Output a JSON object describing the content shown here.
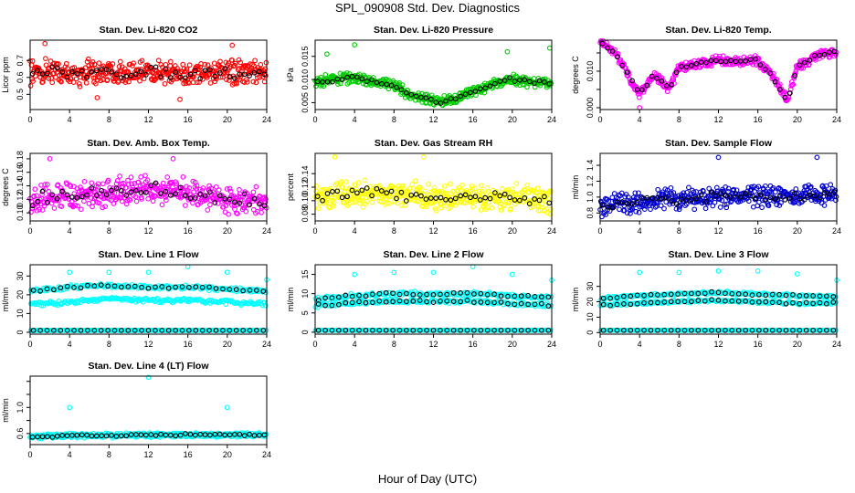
{
  "figure": {
    "title": "SPL_090908  Std. Dev. Diagnostics",
    "xlabel": "Hour of Day (UTC)"
  },
  "colors": {
    "overlay": "#000000",
    "axis": "#000000"
  },
  "chart_data": [
    {
      "type": "scatter",
      "title": "Stan. Dev. Li-820 CO2",
      "ylabel": "Licor ppm",
      "xlim": [
        0,
        24
      ],
      "xticks": [
        0,
        4,
        8,
        12,
        16,
        20,
        24
      ],
      "ylim": [
        0.41,
        0.82
      ],
      "yticks": [
        0.5,
        0.6,
        0.7
      ],
      "ytick_labels": [
        "0.5",
        "0.6",
        "0.7"
      ],
      "color": "#ff0000",
      "overlay_color": "#000000",
      "series": [
        {
          "name": "data",
          "x": [
            0,
            2,
            4,
            6,
            8,
            10,
            12,
            14,
            16,
            18,
            20,
            22,
            24
          ],
          "y": [
            0.63,
            0.64,
            0.62,
            0.63,
            0.63,
            0.62,
            0.63,
            0.63,
            0.62,
            0.63,
            0.63,
            0.62,
            0.63
          ]
        },
        {
          "name": "outliers",
          "x": [
            1.5,
            6.8,
            15.2,
            20.5
          ],
          "y": [
            0.8,
            0.48,
            0.47,
            0.79
          ]
        }
      ]
    },
    {
      "type": "scatter",
      "title": "Stan. Dev. Li-820 Pressure",
      "ylabel": "kPa",
      "xlim": [
        0,
        24
      ],
      "xticks": [
        0,
        4,
        8,
        12,
        16,
        20,
        24
      ],
      "ylim": [
        0.0035,
        0.0185
      ],
      "yticks": [
        0.005,
        0.01,
        0.015
      ],
      "ytick_labels": [
        "0.005",
        "0.010",
        "0.015"
      ],
      "color": "#00cc00",
      "overlay_color": "#000000",
      "series": [
        {
          "name": "data",
          "x": [
            0,
            2,
            4,
            6,
            8,
            10,
            12,
            14,
            16,
            18,
            20,
            22,
            24
          ],
          "y": [
            0.0095,
            0.01,
            0.0105,
            0.0095,
            0.0085,
            0.0065,
            0.0055,
            0.0055,
            0.0075,
            0.009,
            0.01,
            0.0095,
            0.009
          ]
        },
        {
          "name": "outliers",
          "x": [
            4,
            23.8,
            1.2,
            19.5
          ],
          "y": [
            0.0175,
            0.0168,
            0.0155,
            0.016
          ]
        }
      ]
    },
    {
      "type": "scatter",
      "title": "Stan. Dev. Li-820 Temp.",
      "ylabel": "degrees C",
      "xlim": [
        0,
        24
      ],
      "xticks": [
        0,
        4,
        8,
        12,
        16,
        20,
        24
      ],
      "ylim": [
        -0.0005,
        0.0185
      ],
      "yticks": [
        0.0,
        0.005,
        0.01,
        0.015
      ],
      "ytick_labels": [
        "0.000",
        "",
        "0.010",
        ""
      ],
      "color": "#ff00ff",
      "overlay_color": "#000000",
      "series": [
        {
          "name": "data",
          "x": [
            0,
            1.5,
            3,
            4,
            5.5,
            7,
            8,
            10,
            12,
            14,
            16,
            17.5,
            19,
            20,
            22,
            24
          ],
          "y": [
            0.018,
            0.015,
            0.008,
            0.004,
            0.009,
            0.005,
            0.011,
            0.012,
            0.013,
            0.0125,
            0.013,
            0.0085,
            0.002,
            0.011,
            0.0145,
            0.0155
          ]
        },
        {
          "name": "outliers",
          "x": [
            4
          ],
          "y": [
            0.0
          ]
        }
      ]
    },
    {
      "type": "scatter",
      "title": "Stan. Dev. Amb. Box Temp.",
      "ylabel": "degrees C",
      "xlim": [
        0,
        24
      ],
      "xticks": [
        0,
        4,
        8,
        12,
        16,
        20,
        24
      ],
      "ylim": [
        0.088,
        0.188
      ],
      "yticks": [
        0.1,
        0.12,
        0.14,
        0.16,
        0.18
      ],
      "ytick_labels": [
        "0.10",
        "0.12",
        "0.14",
        "0.16",
        "0.18"
      ],
      "color": "#ff00ff",
      "overlay_color": "#000000",
      "series": [
        {
          "name": "data",
          "x": [
            0,
            4,
            8,
            12,
            16,
            20,
            24
          ],
          "y": [
            0.12,
            0.125,
            0.13,
            0.135,
            0.13,
            0.12,
            0.115
          ]
        },
        {
          "name": "outliers",
          "x": [
            2,
            14.5
          ],
          "y": [
            0.18,
            0.18
          ]
        }
      ]
    },
    {
      "type": "scatter",
      "title": "Stan. Dev. Gas Stream RH",
      "ylabel": "percent",
      "xlim": [
        0,
        24
      ],
      "xticks": [
        0,
        4,
        8,
        12,
        16,
        20,
        24
      ],
      "ylim": [
        0.07,
        0.17
      ],
      "yticks": [
        0.08,
        0.1,
        0.12,
        0.14
      ],
      "ytick_labels": [
        "0.08",
        "0.10",
        "0.12",
        "0.14"
      ],
      "color": "#ffff00",
      "overlay_color": "#000000",
      "series": [
        {
          "name": "data",
          "x": [
            0,
            4,
            8,
            12,
            16,
            20,
            24
          ],
          "y": [
            0.105,
            0.11,
            0.11,
            0.105,
            0.105,
            0.105,
            0.1
          ]
        },
        {
          "name": "outliers",
          "x": [
            2,
            11
          ],
          "y": [
            0.165,
            0.165
          ]
        }
      ]
    },
    {
      "type": "scatter",
      "title": "Stan. Dev. Sample Flow",
      "ylabel": "ml/min",
      "xlim": [
        0,
        24
      ],
      "xticks": [
        0,
        4,
        8,
        12,
        16,
        20,
        24
      ],
      "ylim": [
        0.7,
        1.55
      ],
      "yticks": [
        0.8,
        1.0,
        1.2,
        1.4
      ],
      "ytick_labels": [
        "0.8",
        "1.0",
        "1.2",
        "1.4"
      ],
      "color": "#0000cc",
      "overlay_color": "#000000",
      "series": [
        {
          "name": "data",
          "x": [
            0,
            4,
            8,
            12,
            16,
            20,
            24
          ],
          "y": [
            0.9,
            0.95,
            0.98,
            1.0,
            1.0,
            1.02,
            1.05
          ]
        },
        {
          "name": "outliers",
          "x": [
            12,
            22
          ],
          "y": [
            1.5,
            1.5
          ]
        }
      ]
    },
    {
      "type": "scatter",
      "title": "Stan. Dev. Line 1 Flow",
      "ylabel": "ml/min",
      "xlim": [
        0,
        24
      ],
      "xticks": [
        0,
        4,
        8,
        12,
        16,
        20,
        24
      ],
      "ylim": [
        -1,
        36
      ],
      "yticks": [
        0,
        10,
        20,
        30
      ],
      "ytick_labels": [
        "0",
        "10",
        "20",
        "30"
      ],
      "color": "#00ffff",
      "overlay_color": "#000000",
      "series": [
        {
          "name": "band-upper",
          "x": [
            0,
            4,
            8,
            12,
            16,
            20,
            24
          ],
          "y": [
            22,
            24,
            25,
            24,
            24,
            23,
            22
          ]
        },
        {
          "name": "band-lower",
          "x": [
            0,
            4,
            8,
            12,
            16,
            20,
            24
          ],
          "y": [
            15,
            16,
            18,
            17,
            17,
            16,
            15
          ]
        },
        {
          "name": "band-zero",
          "x": [
            0,
            24
          ],
          "y": [
            1,
            1
          ]
        },
        {
          "name": "spikes",
          "x": [
            4,
            8,
            12,
            16,
            20,
            24
          ],
          "y": [
            32,
            32,
            32,
            35,
            32,
            28
          ]
        }
      ]
    },
    {
      "type": "scatter",
      "title": "Stan. Dev. Line 2 Flow",
      "ylabel": "ml/min",
      "xlim": [
        0,
        24
      ],
      "xticks": [
        0,
        4,
        8,
        12,
        16,
        20,
        24
      ],
      "ylim": [
        -0.5,
        17.5
      ],
      "yticks": [
        0,
        5,
        10,
        15
      ],
      "ytick_labels": [
        "0",
        "5",
        "10",
        "15"
      ],
      "color": "#00ffff",
      "overlay_color": "#000000",
      "series": [
        {
          "name": "band-upper",
          "x": [
            0,
            4,
            8,
            12,
            16,
            20,
            24
          ],
          "y": [
            8.5,
            9.5,
            10,
            10,
            10,
            9.5,
            9
          ]
        },
        {
          "name": "band-lower",
          "x": [
            0,
            4,
            8,
            12,
            16,
            20,
            24
          ],
          "y": [
            7,
            7.5,
            8,
            8,
            8,
            7.5,
            7
          ]
        },
        {
          "name": "band-zero",
          "x": [
            0,
            24
          ],
          "y": [
            0.5,
            0.5
          ]
        },
        {
          "name": "spikes",
          "x": [
            4,
            8,
            12,
            16,
            20,
            24
          ],
          "y": [
            15,
            15.5,
            15.5,
            17,
            15,
            13.5
          ]
        }
      ]
    },
    {
      "type": "scatter",
      "title": "Stan. Dev. Line 3 Flow",
      "ylabel": "ml/min",
      "xlim": [
        0,
        24
      ],
      "xticks": [
        0,
        4,
        8,
        12,
        16,
        20,
        24
      ],
      "ylim": [
        -1,
        44
      ],
      "yticks": [
        0,
        10,
        20,
        30
      ],
      "ytick_labels": [
        "0",
        "10",
        "20",
        "30"
      ],
      "color": "#00ffff",
      "overlay_color": "#000000",
      "series": [
        {
          "name": "band-upper",
          "x": [
            0,
            4,
            8,
            12,
            16,
            20,
            24
          ],
          "y": [
            22,
            24,
            25,
            26,
            25,
            24,
            23
          ]
        },
        {
          "name": "band-lower",
          "x": [
            0,
            4,
            8,
            12,
            16,
            20,
            24
          ],
          "y": [
            18,
            19,
            20,
            21,
            20,
            19,
            19
          ]
        },
        {
          "name": "band-zero",
          "x": [
            0,
            24
          ],
          "y": [
            1.5,
            1.5
          ]
        },
        {
          "name": "spikes",
          "x": [
            4,
            8,
            12,
            16,
            20,
            24
          ],
          "y": [
            39,
            39,
            40,
            40,
            38,
            34
          ]
        }
      ]
    },
    {
      "type": "scatter",
      "title": "Stan. Dev. Line 4 (LT) Flow",
      "ylabel": "ml/min",
      "xlim": [
        0,
        24
      ],
      "xticks": [
        0,
        4,
        8,
        12,
        16,
        20,
        24
      ],
      "ylim": [
        0.43,
        1.48
      ],
      "yticks": [
        0.6,
        0.8,
        1.0,
        1.2,
        1.4
      ],
      "ytick_labels": [
        "0.6",
        "",
        "1.0",
        "",
        ""
      ],
      "color": "#00ffff",
      "overlay_color": "#000000",
      "series": [
        {
          "name": "data",
          "x": [
            0,
            4,
            8,
            12,
            16,
            20,
            24
          ],
          "y": [
            0.55,
            0.57,
            0.57,
            0.58,
            0.58,
            0.58,
            0.58
          ]
        },
        {
          "name": "outliers",
          "x": [
            4,
            12,
            20
          ],
          "y": [
            1.0,
            1.46,
            1.0
          ]
        }
      ]
    }
  ]
}
